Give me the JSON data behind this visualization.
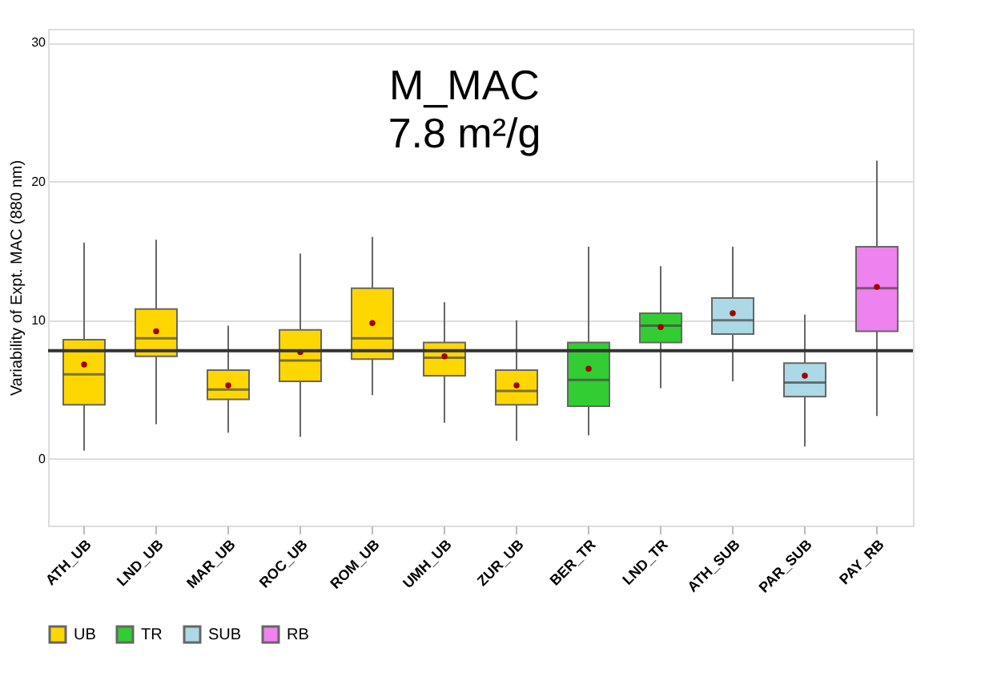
{
  "chart_data": {
    "type": "box",
    "annotations": [
      "M_MAC",
      "7.8 m²/g"
    ],
    "ylabel": "Variability of Expt. MAC (880 nm)",
    "categories": [
      "ATH_UB",
      "LND_UB",
      "MAR_UB",
      "ROC_UB",
      "ROM_UB",
      "UMH_UB",
      "ZUR_UB",
      "BER_TR",
      "LND_TR",
      "ATH_SUB",
      "PAR_SUB",
      "PAY_RB"
    ],
    "series": [
      {
        "name": "UB",
        "color": "#ffd700",
        "boxes": [
          {
            "low": 0.6,
            "q1": 3.9,
            "median": 6.1,
            "q3": 8.6,
            "high": 15.6,
            "mean": 6.8
          },
          {
            "low": 2.5,
            "q1": 7.4,
            "median": 8.7,
            "q3": 10.8,
            "high": 15.8,
            "mean": 9.2
          },
          {
            "low": 1.9,
            "q1": 4.3,
            "median": 5.0,
            "q3": 6.4,
            "high": 9.6,
            "mean": 5.3
          },
          {
            "low": 1.6,
            "q1": 5.6,
            "median": 7.1,
            "q3": 9.3,
            "high": 14.8,
            "mean": 7.7
          },
          {
            "low": 4.6,
            "q1": 7.2,
            "median": 8.7,
            "q3": 12.3,
            "high": 16.0,
            "mean": 9.8
          },
          {
            "low": 2.6,
            "q1": 6.0,
            "median": 7.3,
            "q3": 8.4,
            "high": 11.3,
            "mean": 7.4
          },
          {
            "low": 1.3,
            "q1": 3.9,
            "median": 4.9,
            "q3": 6.4,
            "high": 10.0,
            "mean": 5.3
          },
          null,
          null,
          null,
          null,
          null
        ]
      },
      {
        "name": "TR",
        "color": "#32cd32",
        "boxes": [
          null,
          null,
          null,
          null,
          null,
          null,
          null,
          {
            "low": 1.7,
            "q1": 3.8,
            "median": 5.7,
            "q3": 8.4,
            "high": 15.3,
            "mean": 6.5
          },
          {
            "low": 5.1,
            "q1": 8.4,
            "median": 9.6,
            "q3": 10.5,
            "high": 13.9,
            "mean": 9.5
          },
          null,
          null,
          null
        ]
      },
      {
        "name": "SUB",
        "color": "#add8e6",
        "boxes": [
          null,
          null,
          null,
          null,
          null,
          null,
          null,
          null,
          null,
          {
            "low": 5.6,
            "q1": 9.0,
            "median": 10.0,
            "q3": 11.6,
            "high": 15.3,
            "mean": 10.5
          },
          {
            "low": 0.9,
            "q1": 4.5,
            "median": 5.5,
            "q3": 6.9,
            "high": 10.4,
            "mean": 6.0
          },
          null
        ]
      },
      {
        "name": "RB",
        "color": "#ee82ee",
        "boxes": [
          null,
          null,
          null,
          null,
          null,
          null,
          null,
          null,
          null,
          null,
          null,
          {
            "low": 3.1,
            "q1": 9.2,
            "median": 12.3,
            "q3": 15.3,
            "high": 21.5,
            "mean": 12.4
          }
        ]
      }
    ],
    "ylim": [
      -4.8,
      31
    ],
    "yticks": [
      0,
      10,
      20,
      30
    ],
    "ref_lines": [
      {
        "axis": "y",
        "value": 7.8,
        "color": "#333333"
      }
    ],
    "grid": "y",
    "legend": "bottom"
  }
}
